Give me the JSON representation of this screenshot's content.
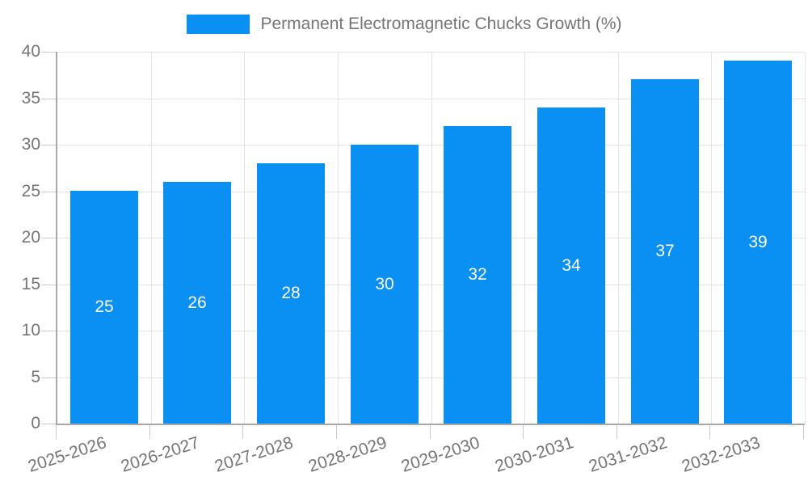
{
  "chart_data": {
    "type": "bar",
    "legend": "Permanent Electromagnetic Chucks Growth (%)",
    "categories": [
      "2025-2026",
      "2026-2027",
      "2027-2028",
      "2028-2029",
      "2029-2030",
      "2030-2031",
      "2031-2032",
      "2032-2033"
    ],
    "values": [
      25,
      26,
      28,
      30,
      32,
      34,
      37,
      39
    ],
    "ylim": [
      0,
      40
    ],
    "ytick_step": 5,
    "ytick_labels": [
      "0",
      "5",
      "10",
      "15",
      "20",
      "25",
      "30",
      "35",
      "40"
    ],
    "grid": true,
    "legend_position": "top-center",
    "bar_color": "#0a8ff2",
    "bar_label_color": "#ffffff",
    "axis_text_color": "#757575",
    "grid_color": "#e3e3e3",
    "axis_line_color": "#a8a8a8",
    "tick_color": "#c9c9c9",
    "x_label_rotation_deg": -18
  }
}
